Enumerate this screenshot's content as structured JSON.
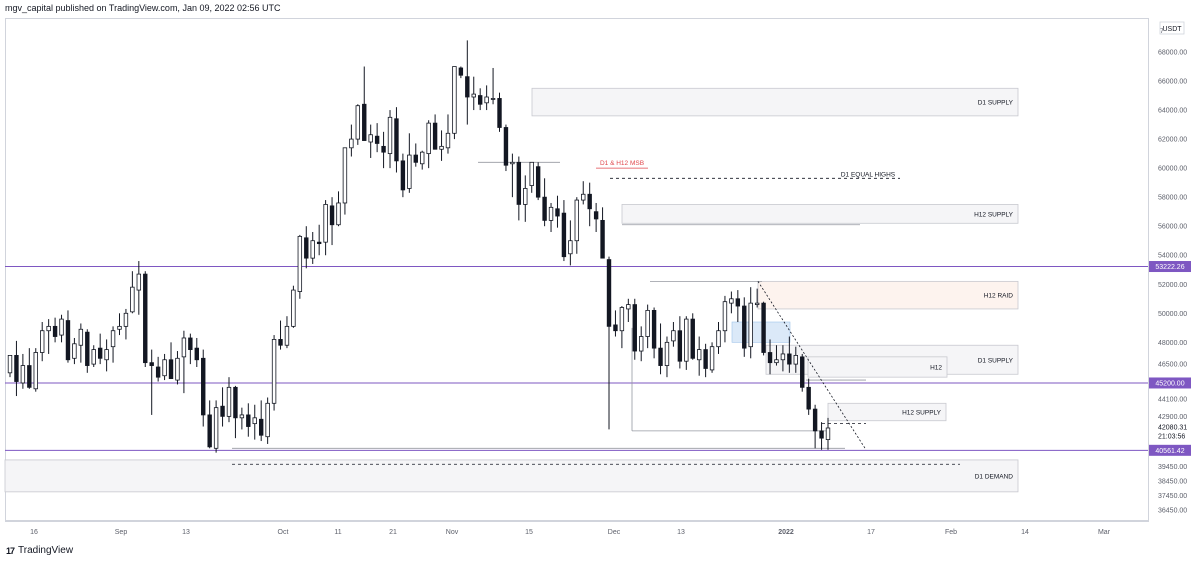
{
  "header": {
    "attribution": "mgv_capital published on TradingView.com, Jan 09, 2022 02:56 UTC"
  },
  "footer": {
    "logo": "17",
    "brand": "TradingView"
  },
  "price_axis": {
    "currency": "USDT"
  },
  "colors": {
    "candle": "#131722",
    "level_line": "#7e57c2",
    "zone_fill": "#f5f5f7",
    "zone_border": "#c8c9cf",
    "raid_fill": "#fdf3ee",
    "blue_zone": "#dbe9f8",
    "msb_text": "#e0474c",
    "axis_text": "#5d606b"
  },
  "chart_data": {
    "type": "candlestick",
    "symbol_quote": "USDT",
    "ylim": [
      35500,
      70000
    ],
    "x_ticks": [
      "16",
      "Sep",
      "13",
      "Oct",
      "11",
      "21",
      "Nov",
      "15",
      "Dec",
      "13",
      "2022",
      "17",
      "Feb",
      "14",
      "Mar"
    ],
    "bold_x_tick": "2022",
    "y_ticks": [
      "7",
      "68000.00",
      "66000.00",
      "64000.00",
      "62000.00",
      "60000.00",
      "58000.00",
      "56000.00",
      "54000.00",
      "52000.00",
      "50000.00",
      "48000.00",
      "46500.00",
      "44100.00",
      "42900.00",
      "39450.00",
      "38450.00",
      "37450.00",
      "36450.00"
    ],
    "price_tags": [
      {
        "label": "53222.26",
        "value": 53222.26,
        "highlight": true
      },
      {
        "label": "45200.00",
        "value": 45200,
        "highlight": true
      },
      {
        "label": "40561.42",
        "value": 40561.42,
        "highlight": true
      },
      {
        "label": "42080.31",
        "value": 42080.31,
        "highlight": false
      },
      {
        "label": "21:03:56",
        "value": null,
        "highlight": false
      }
    ],
    "levels": [
      53222.26,
      45200,
      40561.42
    ],
    "zones": [
      {
        "label": "D1 SUPPLY",
        "high": 65500,
        "low": 63600,
        "kind": "supply"
      },
      {
        "label": "H12 SUPPLY",
        "high": 57500,
        "low": 56200,
        "kind": "supply"
      },
      {
        "label": "H12 RAID",
        "high": 52200,
        "low": 50300,
        "kind": "raid"
      },
      {
        "label": "D1 SUPPLY",
        "high": 47800,
        "low": 45800,
        "kind": "supply"
      },
      {
        "label": "H12",
        "high": 47000,
        "low": 45600,
        "kind": "supply"
      },
      {
        "label": "H12 SUPPLY",
        "high": 43800,
        "low": 42600,
        "kind": "supply"
      },
      {
        "label": "D1 DEMAND",
        "high": 39900,
        "low": 37700,
        "kind": "demand"
      }
    ],
    "annotations": [
      {
        "text": "D1 & H12 MSB",
        "value": 60400
      },
      {
        "text": "D1 EQUAL HIGHS",
        "value": 59300
      }
    ],
    "candles": [
      [
        45900,
        47000,
        45600,
        47100
      ],
      [
        47100,
        48100,
        44300,
        45300
      ],
      [
        45200,
        47200,
        44800,
        46400
      ],
      [
        46400,
        47600,
        44800,
        44900
      ],
      [
        44800,
        47600,
        44600,
        47300
      ],
      [
        47300,
        49400,
        46700,
        48800
      ],
      [
        48800,
        49600,
        47200,
        49100
      ],
      [
        49100,
        49700,
        48000,
        48400
      ],
      [
        48500,
        49900,
        48000,
        49600
      ],
      [
        49500,
        50200,
        46600,
        46800
      ],
      [
        46900,
        48300,
        46500,
        47900
      ],
      [
        47800,
        49300,
        46600,
        48900
      ],
      [
        48700,
        48900,
        45900,
        46400
      ],
      [
        46500,
        47800,
        46300,
        47500
      ],
      [
        47600,
        48600,
        46500,
        46900
      ],
      [
        46800,
        48200,
        46000,
        47500
      ],
      [
        47700,
        49100,
        46600,
        48800
      ],
      [
        48900,
        50000,
        48500,
        49100
      ],
      [
        49100,
        50300,
        48200,
        50000
      ],
      [
        50100,
        52900,
        50000,
        51800
      ],
      [
        51600,
        53600,
        49900,
        52700
      ],
      [
        52700,
        52900,
        46300,
        46600
      ],
      [
        46600,
        47500,
        43000,
        46400
      ],
      [
        46300,
        47000,
        45300,
        45600
      ],
      [
        45700,
        47200,
        45400,
        46800
      ],
      [
        46800,
        48000,
        45800,
        45500
      ],
      [
        45400,
        47400,
        45100,
        46900
      ],
      [
        47000,
        48800,
        44500,
        48300
      ],
      [
        48300,
        48600,
        46500,
        47500
      ],
      [
        47600,
        48300,
        46300,
        46800
      ],
      [
        46900,
        47500,
        42200,
        43000
      ],
      [
        43000,
        44000,
        40700,
        40800
      ],
      [
        40700,
        44000,
        40400,
        43500
      ],
      [
        43600,
        44900,
        42200,
        42900
      ],
      [
        42900,
        45600,
        42500,
        44900
      ],
      [
        44900,
        45000,
        41400,
        42800
      ],
      [
        42800,
        43500,
        42000,
        43000
      ],
      [
        43000,
        43800,
        41500,
        42200
      ],
      [
        42400,
        43700,
        41300,
        42800
      ],
      [
        42700,
        44000,
        41200,
        41600
      ],
      [
        41500,
        44200,
        41000,
        43800
      ],
      [
        43800,
        48500,
        43300,
        48200
      ],
      [
        48200,
        49500,
        47500,
        47800
      ],
      [
        47800,
        49800,
        47600,
        49100
      ],
      [
        49100,
        51900,
        49000,
        51600
      ],
      [
        51500,
        55400,
        51000,
        55300
      ],
      [
        55200,
        56000,
        53100,
        53800
      ],
      [
        53800,
        55600,
        53400,
        55000
      ],
      [
        54900,
        56100,
        54000,
        54800
      ],
      [
        54900,
        57800,
        54000,
        57500
      ],
      [
        57400,
        58000,
        54700,
        56100
      ],
      [
        56100,
        58400,
        56000,
        57600
      ],
      [
        57600,
        61400,
        56800,
        61400
      ],
      [
        61400,
        63000,
        60800,
        62000
      ],
      [
        62000,
        64400,
        61600,
        64300
      ],
      [
        64400,
        67000,
        61900,
        61900
      ],
      [
        61800,
        63000,
        60700,
        62300
      ],
      [
        62200,
        63100,
        61100,
        61700
      ],
      [
        61500,
        62500,
        60000,
        61100
      ],
      [
        61000,
        64000,
        60000,
        63500
      ],
      [
        63400,
        64200,
        59700,
        60500
      ],
      [
        60500,
        61000,
        58000,
        58500
      ],
      [
        58600,
        62400,
        58300,
        60900
      ],
      [
        60900,
        61700,
        60100,
        60400
      ],
      [
        60300,
        61200,
        59900,
        61100
      ],
      [
        61000,
        63300,
        60000,
        63100
      ],
      [
        63100,
        63700,
        61300,
        61300
      ],
      [
        61300,
        62600,
        60500,
        61500
      ],
      [
        61400,
        63700,
        61000,
        62400
      ],
      [
        62400,
        67000,
        62000,
        67000
      ],
      [
        66900,
        67000,
        66200,
        66400
      ],
      [
        66300,
        68800,
        63000,
        64900
      ],
      [
        64900,
        66300,
        64000,
        65100
      ],
      [
        65000,
        65500,
        64000,
        64400
      ],
      [
        64500,
        65700,
        64000,
        64900
      ],
      [
        64800,
        66900,
        64400,
        64800
      ],
      [
        64800,
        65200,
        62500,
        62800
      ],
      [
        62800,
        63000,
        59800,
        60200
      ],
      [
        60300,
        61000,
        58000,
        60400
      ],
      [
        60400,
        60800,
        56400,
        57500
      ],
      [
        57500,
        59500,
        56300,
        58600
      ],
      [
        58800,
        60400,
        58300,
        60400
      ],
      [
        60100,
        60400,
        57800,
        58000
      ],
      [
        58000,
        59300,
        56000,
        56400
      ],
      [
        56400,
        57600,
        55600,
        57300
      ],
      [
        57200,
        58100,
        55900,
        56700
      ],
      [
        56900,
        57800,
        53600,
        53900
      ],
      [
        54100,
        56400,
        53300,
        55000
      ],
      [
        55000,
        58000,
        54100,
        57800
      ],
      [
        57800,
        59100,
        57500,
        58200
      ],
      [
        58200,
        59000,
        56000,
        57200
      ],
      [
        57000,
        57600,
        55600,
        56500
      ],
      [
        56400,
        57300,
        53800,
        53800
      ],
      [
        53700,
        53900,
        42000,
        49100
      ],
      [
        49200,
        50200,
        48400,
        48800
      ],
      [
        48800,
        50500,
        47600,
        50400
      ],
      [
        50300,
        51000,
        49400,
        50600
      ],
      [
        50600,
        51000,
        46800,
        47400
      ],
      [
        47400,
        49100,
        46700,
        48400
      ],
      [
        48400,
        50600,
        47600,
        50200
      ],
      [
        50200,
        50400,
        46900,
        47600
      ],
      [
        47600,
        49300,
        45800,
        46400
      ],
      [
        46400,
        48400,
        45600,
        48000
      ],
      [
        48100,
        49400,
        47700,
        48800
      ],
      [
        48800,
        49800,
        46200,
        46700
      ],
      [
        46700,
        49800,
        46100,
        49600
      ],
      [
        49600,
        50000,
        46800,
        46900
      ],
      [
        46800,
        48400,
        45700,
        47500
      ],
      [
        47500,
        47900,
        45600,
        46200
      ],
      [
        46100,
        48000,
        45900,
        47700
      ],
      [
        47700,
        49400,
        47200,
        48800
      ],
      [
        48800,
        51200,
        48000,
        50800
      ],
      [
        50700,
        51500,
        50000,
        51000
      ],
      [
        51000,
        51600,
        49400,
        50500
      ],
      [
        50500,
        51100,
        47000,
        47600
      ],
      [
        47700,
        51800,
        46900,
        50700
      ],
      [
        50600,
        51700,
        50400,
        50700
      ],
      [
        50700,
        50800,
        47100,
        47300
      ],
      [
        47300,
        48200,
        45800,
        46600
      ],
      [
        46600,
        47800,
        46400,
        46800
      ],
      [
        46800,
        47800,
        46000,
        47200
      ],
      [
        47200,
        48400,
        45900,
        46500
      ],
      [
        46500,
        47700,
        45900,
        47100
      ],
      [
        47000,
        47200,
        44600,
        44900
      ],
      [
        44900,
        45500,
        43000,
        43400
      ],
      [
        43400,
        43700,
        40700,
        41900
      ],
      [
        41900,
        42500,
        40600,
        41400
      ],
      [
        41300,
        42800,
        40600,
        42100
      ]
    ]
  }
}
